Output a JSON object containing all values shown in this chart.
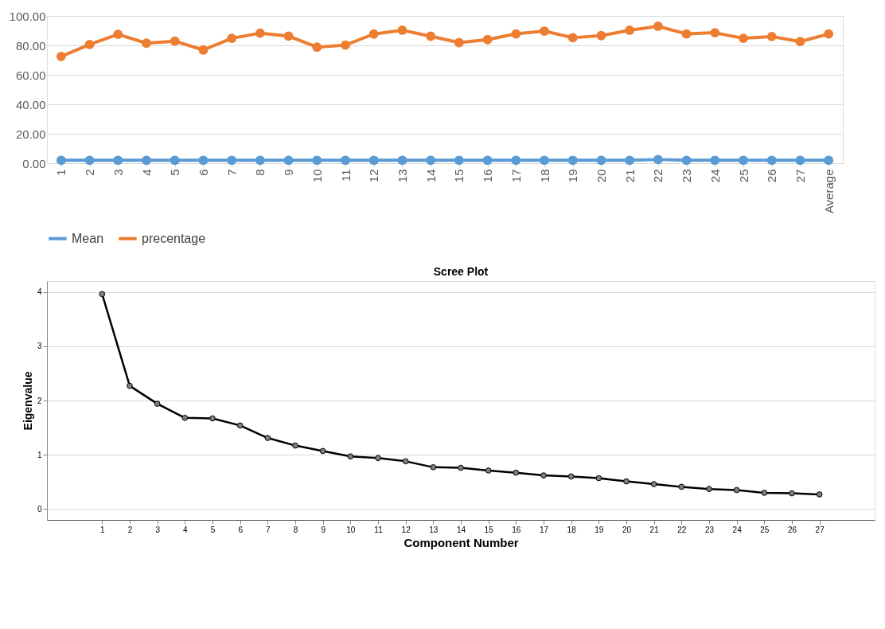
{
  "chart_data": [
    {
      "type": "line",
      "categories": [
        "1",
        "2",
        "3",
        "4",
        "5",
        "6",
        "7",
        "8",
        "9",
        "10",
        "11",
        "12",
        "13",
        "14",
        "15",
        "16",
        "17",
        "18",
        "19",
        "20",
        "21",
        "22",
        "23",
        "24",
        "25",
        "26",
        "27",
        "Average"
      ],
      "series": [
        {
          "name": "Mean",
          "color": "#5b9bd5",
          "values": [
            2,
            2,
            2,
            2,
            2,
            2,
            2,
            2,
            2,
            2,
            2,
            2,
            2,
            2,
            2,
            2,
            2,
            2,
            2,
            2,
            2,
            2.5,
            2,
            2,
            2,
            2,
            2,
            2
          ]
        },
        {
          "name": "precentage",
          "color": "#ed7d31",
          "values": [
            72.5,
            80.6,
            87.5,
            81.5,
            82.9,
            76.9,
            84.8,
            88.3,
            86.3,
            78.8,
            80.2,
            87.7,
            90.3,
            86.2,
            81.9,
            83.9,
            87.8,
            89.7,
            85.2,
            86.6,
            90.3,
            93,
            87.8,
            88.6,
            84.8,
            86,
            82.6,
            87.8
          ]
        }
      ],
      "ylim": [
        0,
        100
      ],
      "yticks": [
        {
          "value": 0,
          "label": "0.00"
        },
        {
          "value": 20,
          "label": "20.00"
        },
        {
          "value": 40,
          "label": "40.00"
        },
        {
          "value": 60,
          "label": "60.00"
        },
        {
          "value": 80,
          "label": "80.00"
        },
        {
          "value": 100,
          "label": "100.00"
        }
      ],
      "grid": "y",
      "legend": "bottom",
      "marker": "circle",
      "line_style": "solid"
    },
    {
      "type": "line",
      "title": "Scree Plot",
      "xlabel": "Component Number",
      "ylabel": "Eigenvalue",
      "x": [
        1,
        2,
        3,
        4,
        5,
        6,
        7,
        8,
        9,
        10,
        11,
        12,
        13,
        14,
        15,
        16,
        17,
        18,
        19,
        20,
        21,
        22,
        23,
        24,
        25,
        26,
        27
      ],
      "series": [
        {
          "color": "#000000",
          "values": [
            3.96,
            2.27,
            1.94,
            1.68,
            1.67,
            1.54,
            1.31,
            1.17,
            1.07,
            0.97,
            0.94,
            0.88,
            0.77,
            0.76,
            0.71,
            0.67,
            0.62,
            0.6,
            0.57,
            0.51,
            0.46,
            0.41,
            0.37,
            0.35,
            0.3,
            0.29,
            0.27
          ]
        }
      ],
      "xlim": [
        -1,
        29
      ],
      "xticks": [
        1,
        2,
        3,
        4,
        5,
        6,
        7,
        8,
        9,
        10,
        11,
        12,
        13,
        14,
        15,
        16,
        17,
        18,
        19,
        20,
        21,
        22,
        23,
        24,
        25,
        26,
        27
      ],
      "ylim": [
        -0.2,
        4.2
      ],
      "yticks": [
        0,
        1,
        2,
        3,
        4
      ],
      "grid": "y",
      "legend": false,
      "marker": "circle",
      "line_style": "solid"
    }
  ]
}
